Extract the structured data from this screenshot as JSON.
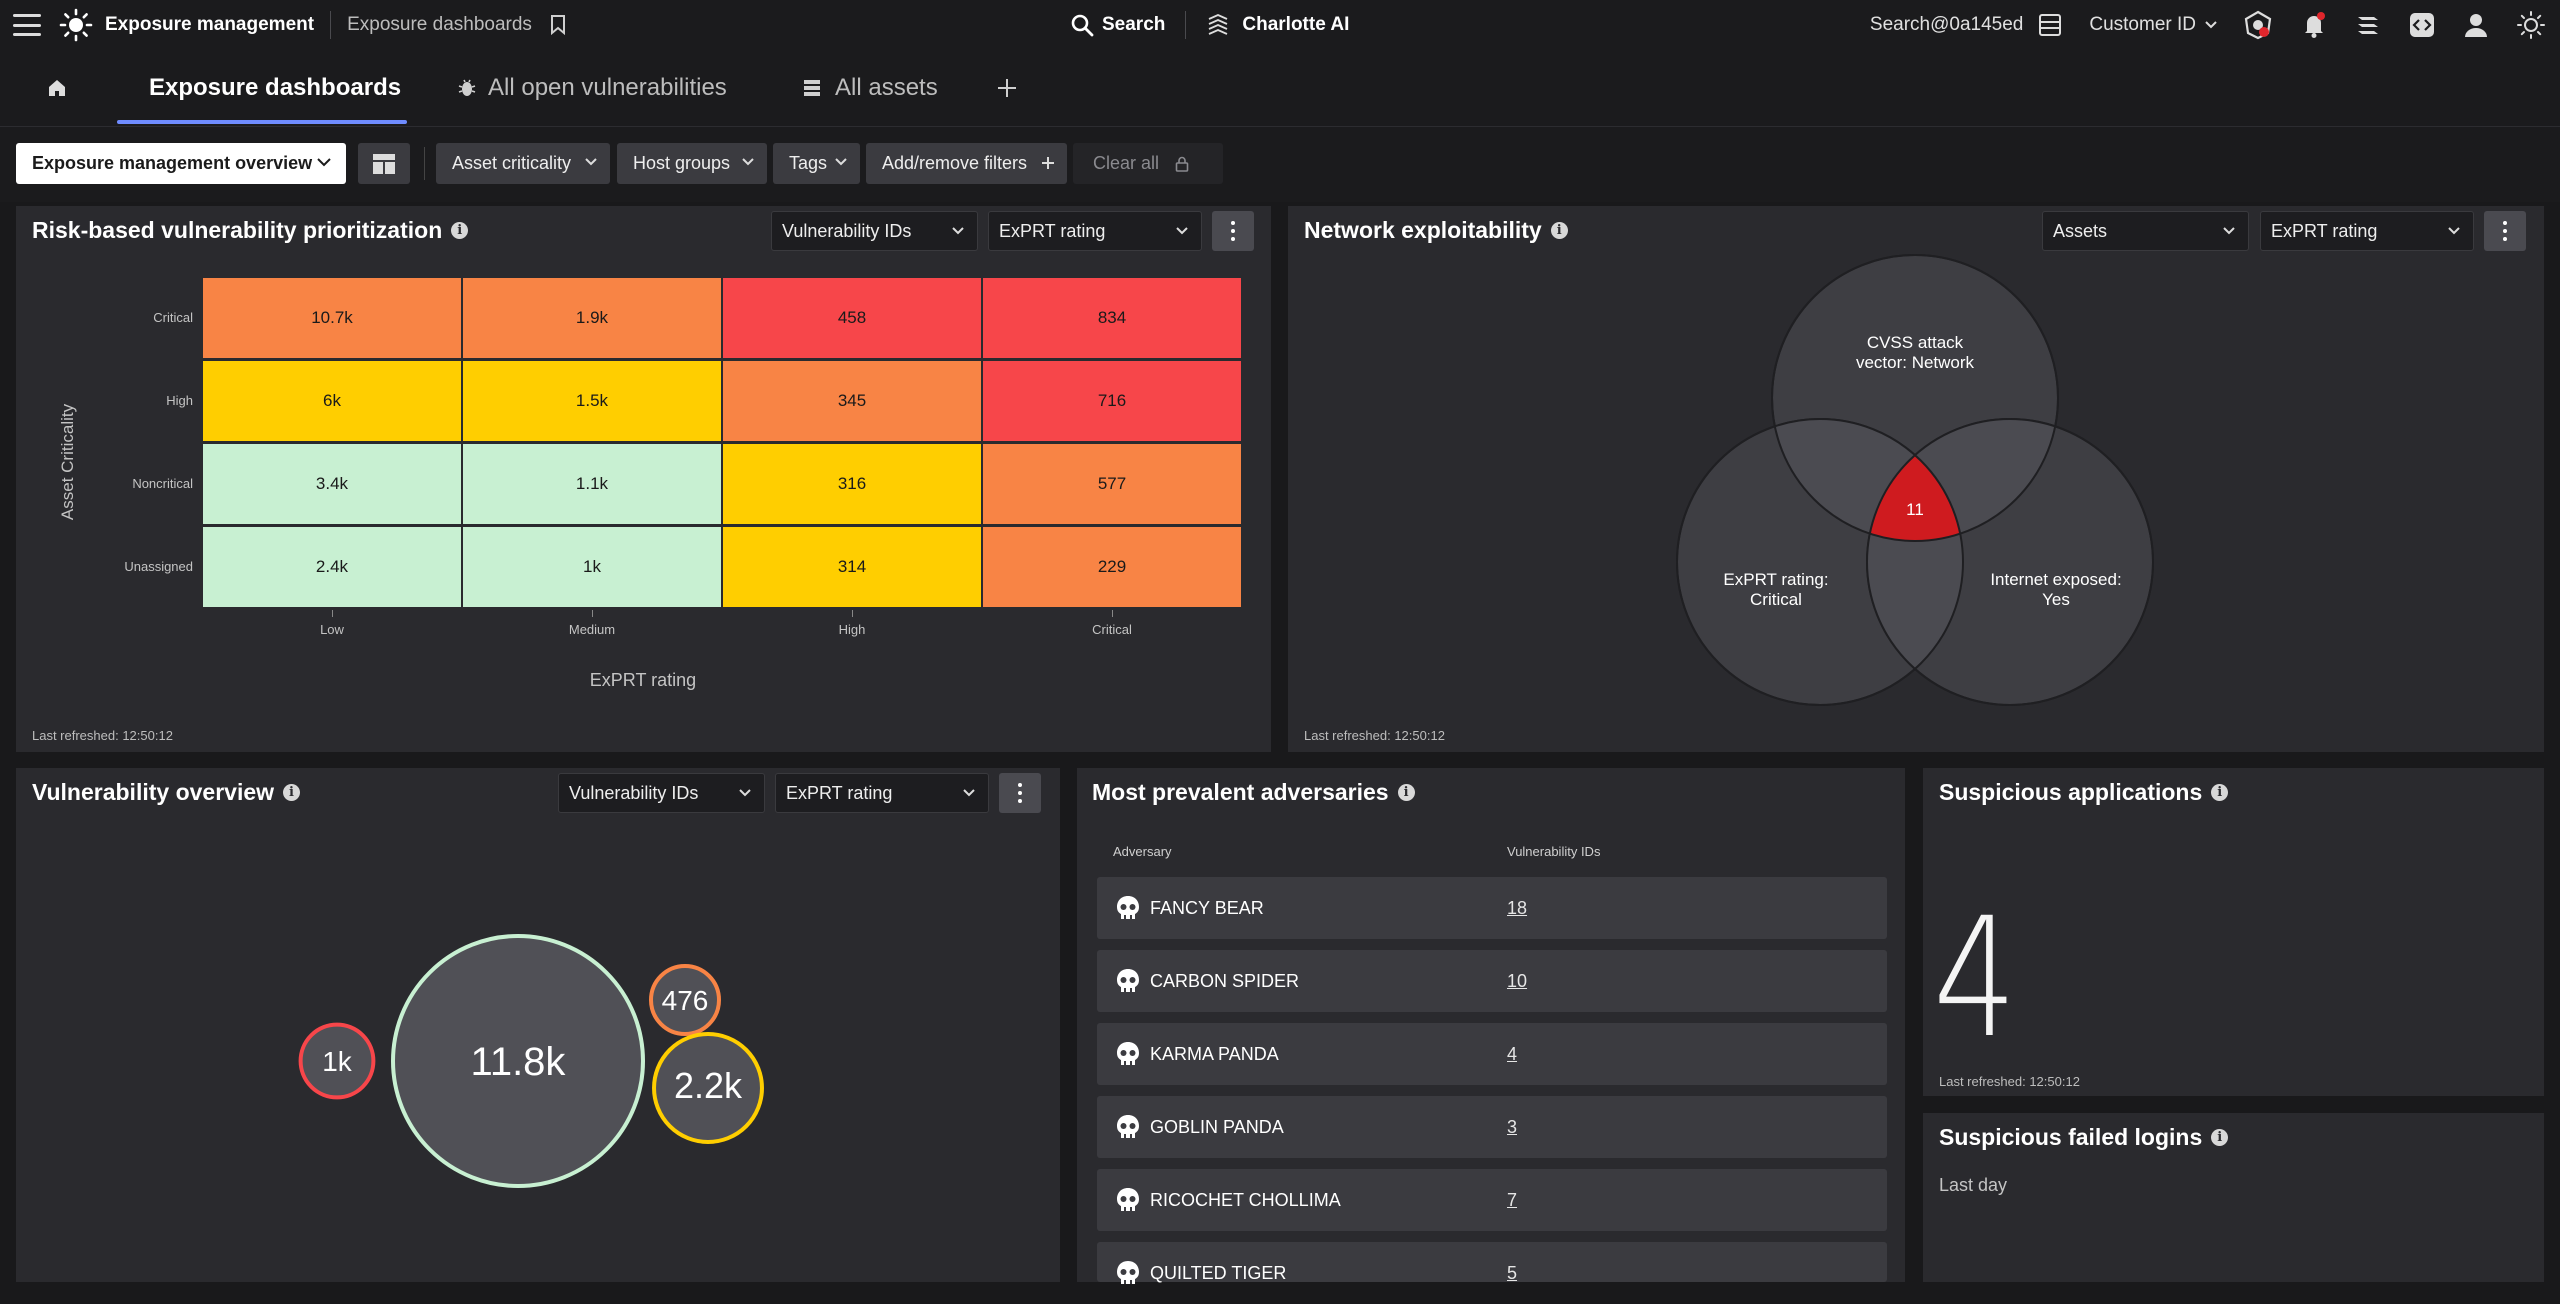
{
  "topbar": {
    "app_title": "Exposure management",
    "breadcrumb": "Exposure dashboards",
    "search_label": "Search",
    "charlotte_label": "Charlotte AI",
    "user_search": "Search@0a145ed",
    "customer_id": "Customer ID"
  },
  "tabs": [
    {
      "label": "Exposure dashboards",
      "active": true
    },
    {
      "label": "All open vulnerabilities",
      "active": false
    },
    {
      "label": "All assets",
      "active": false
    }
  ],
  "filters": {
    "dashboard_select": "Exposure management overview",
    "chips": [
      "Asset criticality",
      "Host groups",
      "Tags"
    ],
    "add_remove": "Add/remove filters",
    "clear_all": "Clear all"
  },
  "risk_panel": {
    "title": "Risk-based vulnerability prioritization",
    "dropdown1": "Vulnerability IDs",
    "dropdown2": "ExPRT rating",
    "last_refreshed": "Last refreshed: 12:50:12"
  },
  "network_panel": {
    "title": "Network exploitability",
    "dropdown1": "Assets",
    "dropdown2": "ExPRT rating",
    "last_refreshed": "Last refreshed: 12:50:12",
    "venn": {
      "top_line1": "CVSS attack",
      "top_line2": "vector: Network",
      "left_line1": "ExPRT rating:",
      "left_line2": "Critical",
      "right_line1": "Internet exposed:",
      "right_line2": "Yes",
      "center": "11"
    }
  },
  "vuln_overview": {
    "title": "Vulnerability overview",
    "dropdown1": "Vulnerability IDs",
    "dropdown2": "ExPRT rating"
  },
  "adversaries": {
    "title": "Most prevalent adversaries",
    "col_adversary": "Adversary",
    "col_vuln": "Vulnerability IDs",
    "rows": [
      {
        "name": "FANCY BEAR",
        "count": "18"
      },
      {
        "name": "CARBON SPIDER",
        "count": "10"
      },
      {
        "name": "KARMA PANDA",
        "count": "4"
      },
      {
        "name": "GOBLIN PANDA",
        "count": "3"
      },
      {
        "name": "RICOCHET CHOLLIMA",
        "count": "7"
      },
      {
        "name": "QUILTED TIGER",
        "count": "5"
      }
    ]
  },
  "suspicious_apps": {
    "title": "Suspicious applications",
    "value": "4",
    "last_refreshed": "Last refreshed: 12:50:12"
  },
  "failed_logins": {
    "title": "Suspicious failed logins",
    "subtitle": "Last day"
  },
  "colors": {
    "critical": "#f7464a",
    "high": "#f88445",
    "medium": "#ffce00",
    "low": "#c8f0d2",
    "accent": "#6f8cff"
  },
  "chart_data": [
    {
      "type": "heatmap",
      "xlabel": "ExPRT rating",
      "ylabel": "Asset Criticality",
      "x_categories": [
        "Low",
        "Medium",
        "High",
        "Critical"
      ],
      "y_categories": [
        "Critical",
        "High",
        "Noncritical",
        "Unassigned"
      ],
      "values": [
        [
          "10.7k",
          "1.9k",
          "458",
          "834"
        ],
        [
          "6k",
          "1.5k",
          "345",
          "716"
        ],
        [
          "3.4k",
          "1.1k",
          "316",
          "577"
        ],
        [
          "2.4k",
          "1k",
          "314",
          "229"
        ]
      ],
      "cell_colors": [
        [
          "#f88445",
          "#f88445",
          "#f7464a",
          "#f7464a"
        ],
        [
          "#ffce00",
          "#ffce00",
          "#f88445",
          "#f7464a"
        ],
        [
          "#c8f0d2",
          "#c8f0d2",
          "#ffce00",
          "#f88445"
        ],
        [
          "#c8f0d2",
          "#c8f0d2",
          "#ffce00",
          "#f88445"
        ]
      ]
    },
    {
      "type": "bubble",
      "bubbles": [
        {
          "label": "11.8k",
          "value": 11800,
          "color": "#c8f0d2"
        },
        {
          "label": "1k",
          "value": 1000,
          "color": "#f7464a"
        },
        {
          "label": "476",
          "value": 476,
          "color": "#f88445"
        },
        {
          "label": "2.2k",
          "value": 2200,
          "color": "#ffce00"
        }
      ]
    }
  ]
}
